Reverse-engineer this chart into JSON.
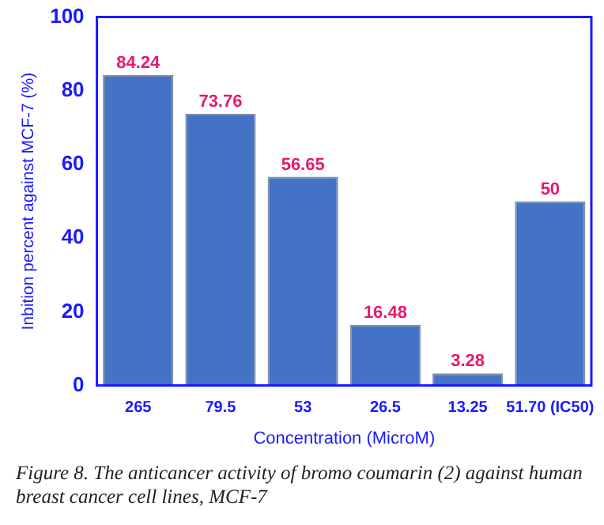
{
  "chart_data": {
    "type": "bar",
    "xlabel": "Concentration (MicroM)",
    "ylabel": "Inbition percent against MCF-7 (%)",
    "categories": [
      "265",
      "79.5",
      "53",
      "26.5",
      "13.25",
      "51.70 (IC50)"
    ],
    "values": [
      84.24,
      73.76,
      56.65,
      16.48,
      3.28,
      50
    ],
    "color": "#4472c4",
    "ylim": [
      0,
      100
    ],
    "yticks": [
      0,
      20,
      40,
      60,
      80,
      100
    ],
    "grid": false,
    "legend": false,
    "data_labels": true,
    "annotations": [
      "Figure 8. The anticancer activity of bromo coumarin (2) against human breast cancer cell lines, MCF-7"
    ]
  }
}
